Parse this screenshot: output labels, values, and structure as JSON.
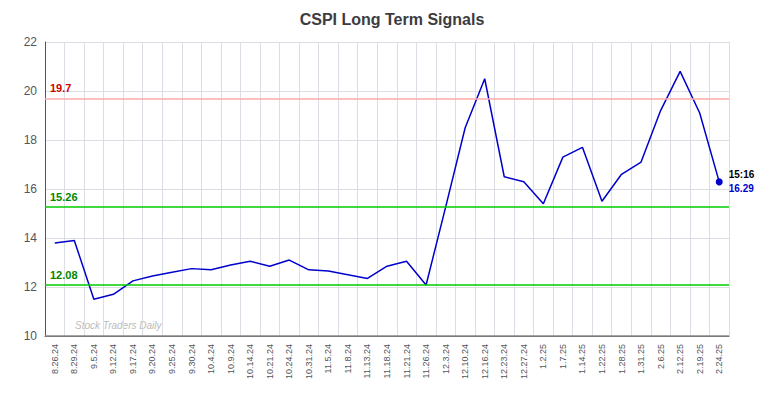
{
  "chart_data": {
    "type": "line",
    "title": "CSPI Long Term Signals",
    "categories": [
      "8.26.24",
      "8.29.24",
      "9.5.24",
      "9.12.24",
      "9.17.24",
      "9.20.24",
      "9.25.24",
      "9.30.24",
      "10.4.24",
      "10.9.24",
      "10.14.24",
      "10.21.24",
      "10.24.24",
      "10.31.24",
      "11.5.24",
      "11.8.24",
      "11.13.24",
      "11.18.24",
      "11.21.24",
      "11.26.24",
      "12.3.24",
      "12.10.24",
      "12.16.24",
      "12.23.24",
      "12.27.24",
      "1.2.25",
      "1.7.25",
      "1.14.25",
      "1.22.25",
      "1.28.25",
      "1.31.25",
      "2.6.25",
      "2.12.25",
      "2.19.25",
      "2.24.25"
    ],
    "values": [
      13.8,
      13.9,
      11.5,
      11.7,
      12.25,
      12.45,
      12.6,
      12.75,
      12.7,
      12.9,
      13.05,
      12.85,
      13.1,
      12.7,
      12.65,
      12.5,
      12.35,
      12.85,
      13.05,
      12.08,
      15.26,
      18.5,
      20.5,
      16.5,
      16.3,
      15.4,
      17.3,
      17.7,
      15.5,
      16.6,
      17.1,
      19.2,
      20.8,
      19.1,
      16.29
    ],
    "color": "#0000cc",
    "ylim": [
      10,
      22
    ],
    "yticks": [
      10,
      12,
      14,
      16,
      18,
      20,
      22
    ],
    "grid": true,
    "reference_lines": [
      {
        "value": 19.7,
        "color": "#ffaaaa",
        "label": "19.7",
        "label_color": "#cc0000"
      },
      {
        "value": 15.26,
        "color": "#00cc00",
        "label": "15.26",
        "label_color": "#008800"
      },
      {
        "value": 12.08,
        "color": "#00cc00",
        "label": "12.08",
        "label_color": "#008800"
      },
      {
        "value": 10,
        "color": "#888888"
      }
    ],
    "end_labels": {
      "time": "15:16",
      "price": "16.29"
    },
    "watermark": "Stock Traders Daily"
  }
}
